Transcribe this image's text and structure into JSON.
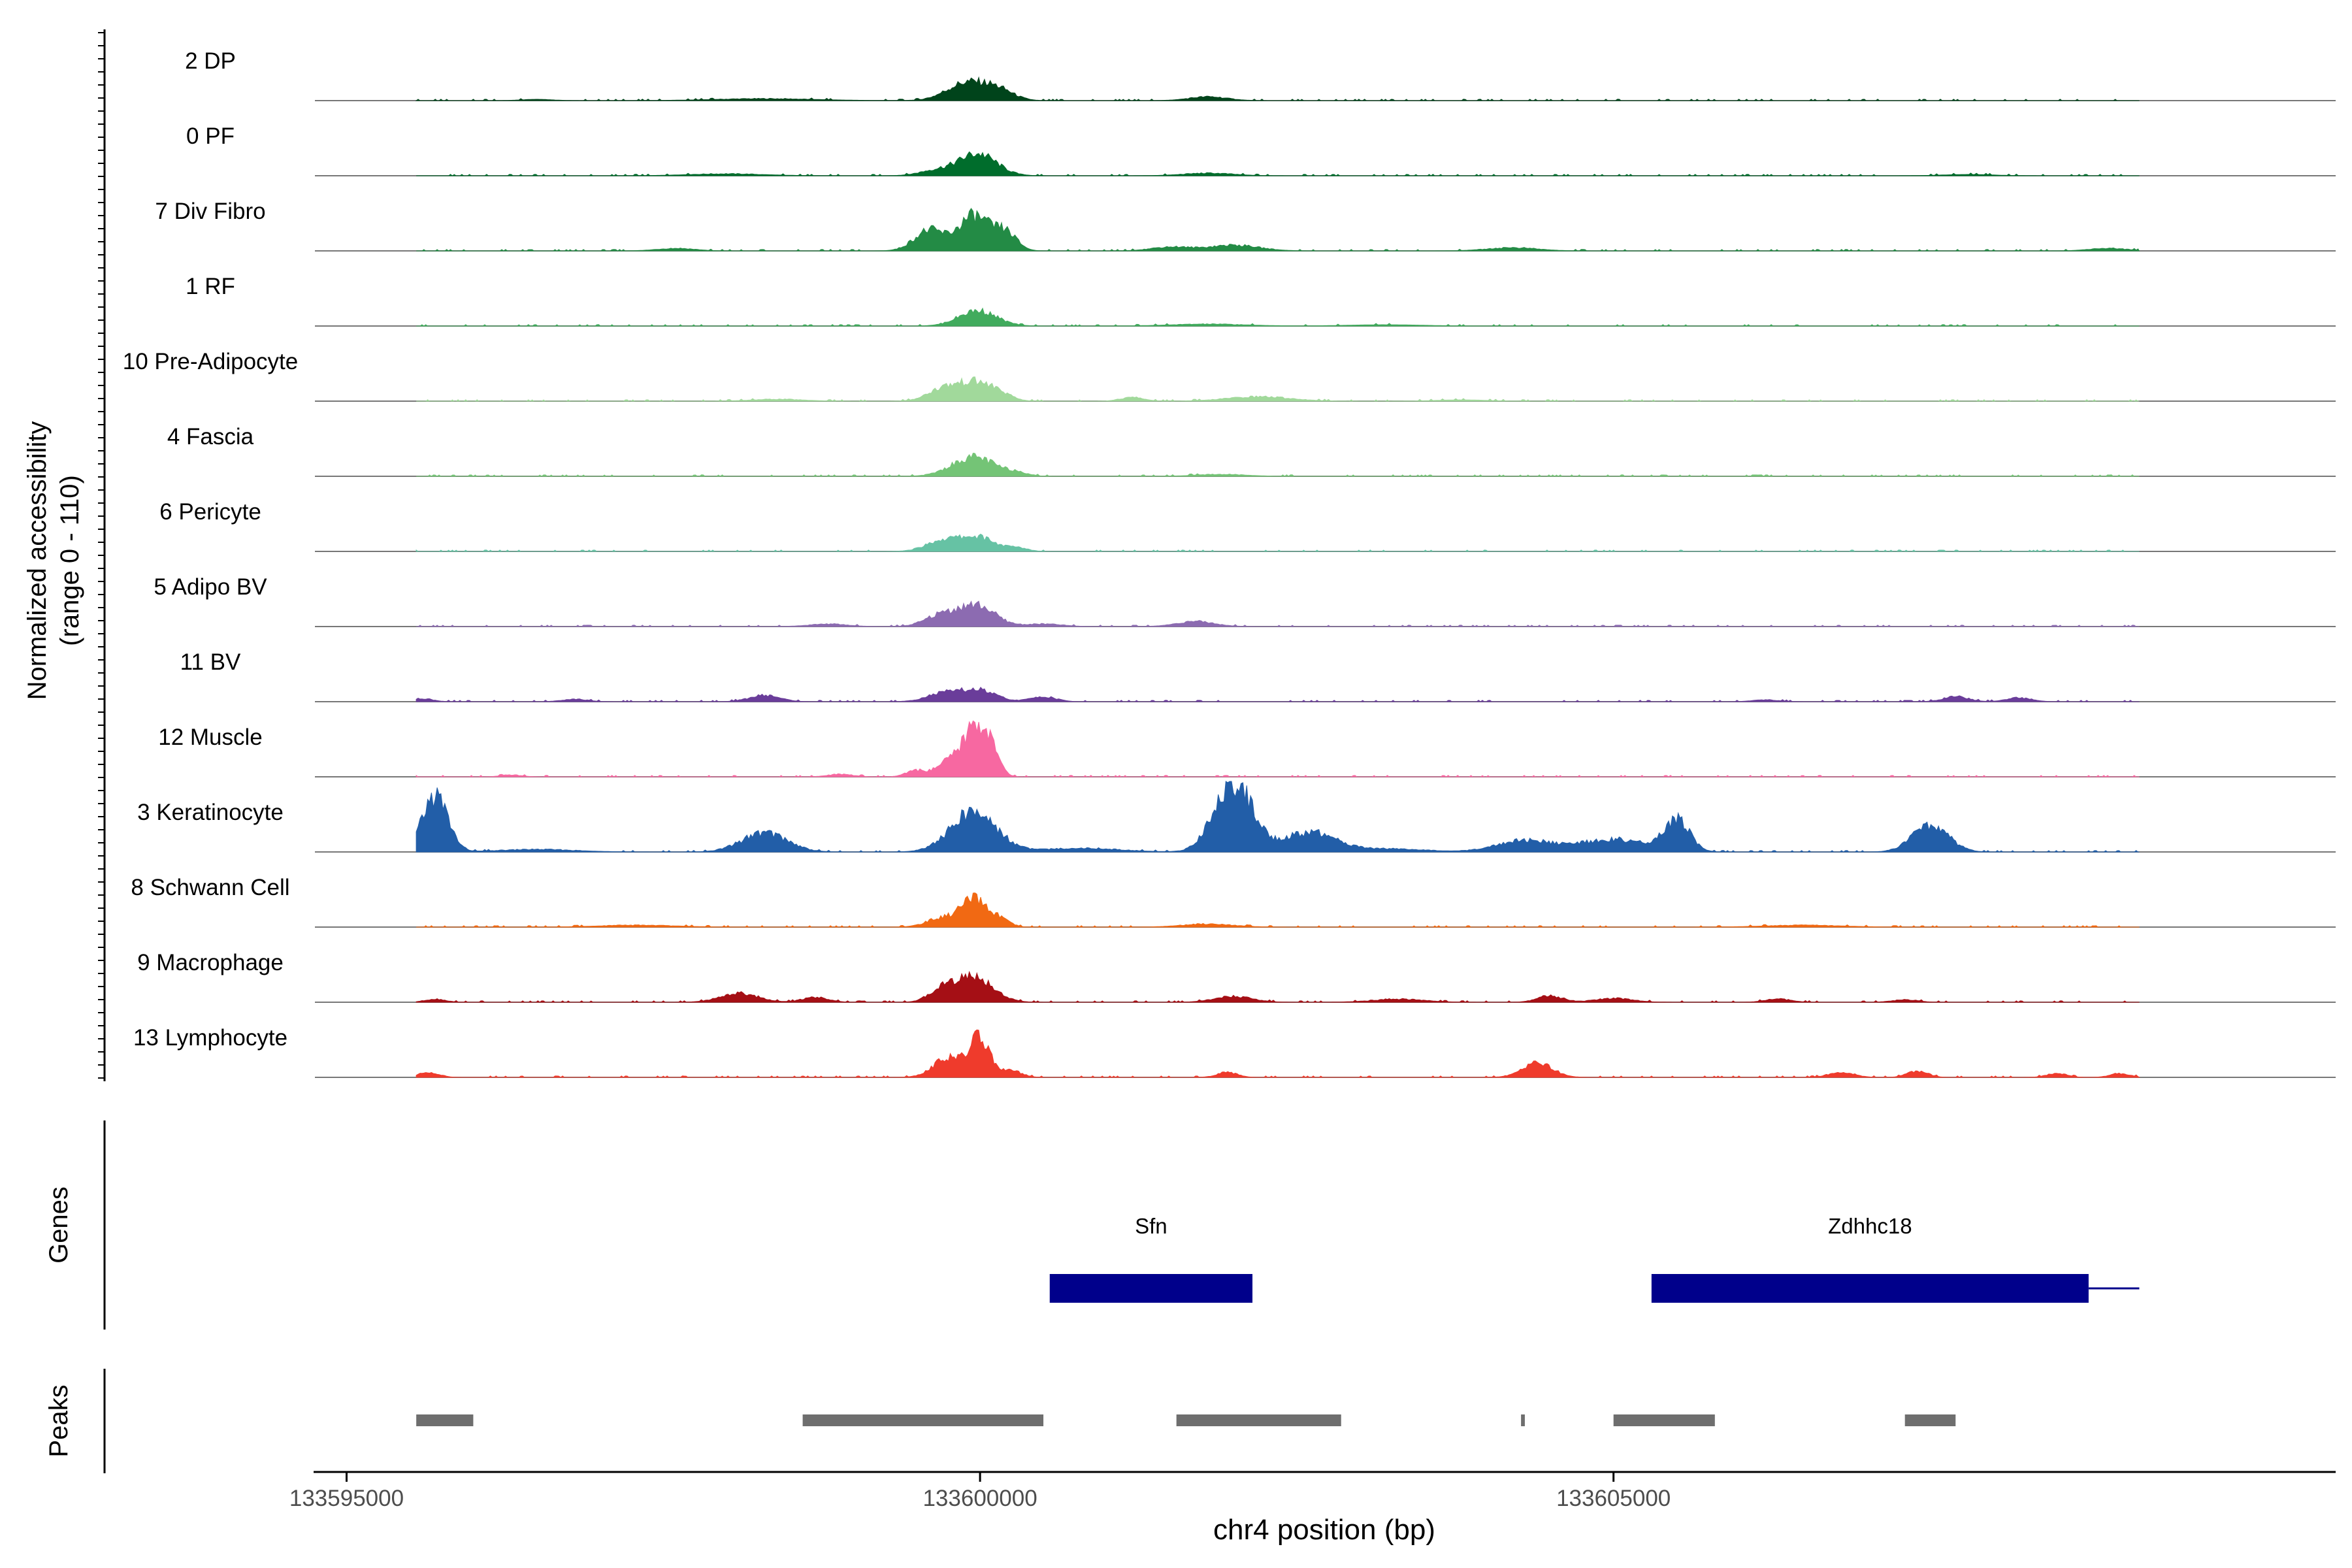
{
  "chart_data": {
    "type": "area",
    "title": "",
    "y_axis_label_line1": "Normalized accessibility",
    "y_axis_label_line2": "(range 0 - 110)",
    "y_range": [
      0,
      110
    ],
    "x_axis_label": "chr4 position (bp)",
    "x_range": [
      133594750,
      133610700
    ],
    "x_ticks": [
      {
        "value": 133595000,
        "label": "133595000"
      },
      {
        "value": 133600000,
        "label": "133600000"
      },
      {
        "value": 133605000,
        "label": "133605000"
      }
    ],
    "track_start": 133595550,
    "track_end": 133609150,
    "tracks": [
      {
        "name": "2 DP",
        "color": "#00441b",
        "bumps": [
          [
            133599900,
            160,
            28
          ],
          [
            133600150,
            120,
            14
          ],
          [
            133601800,
            150,
            6
          ],
          [
            133598300,
            400,
            3
          ],
          [
            133596500,
            120,
            2
          ]
        ]
      },
      {
        "name": "0 PF",
        "color": "#006d2c",
        "bumps": [
          [
            133599980,
            150,
            34
          ],
          [
            133599650,
            130,
            8
          ],
          [
            133601800,
            200,
            4
          ],
          [
            133598000,
            300,
            3
          ],
          [
            133607800,
            200,
            2
          ]
        ]
      },
      {
        "name": "7 Div Fibro",
        "color": "#238b45",
        "bumps": [
          [
            133599600,
            120,
            32
          ],
          [
            133599950,
            120,
            54
          ],
          [
            133600200,
            90,
            28
          ],
          [
            133602000,
            200,
            9
          ],
          [
            133601500,
            150,
            6
          ],
          [
            133604200,
            200,
            5
          ],
          [
            133597600,
            150,
            4
          ],
          [
            133608900,
            150,
            4
          ]
        ]
      },
      {
        "name": "1 RF",
        "color": "#41ab5d",
        "bumps": [
          [
            133599980,
            150,
            24
          ],
          [
            133601800,
            300,
            3
          ],
          [
            133603200,
            300,
            2
          ]
        ]
      },
      {
        "name": "10 Pre-Adipocyte",
        "color": "#a1d99b",
        "bumps": [
          [
            133599700,
            120,
            18
          ],
          [
            133599950,
            130,
            28
          ],
          [
            133600150,
            100,
            10
          ],
          [
            133601200,
            90,
            6
          ],
          [
            133602200,
            250,
            7
          ],
          [
            133598400,
            200,
            3
          ],
          [
            133603800,
            200,
            2
          ]
        ]
      },
      {
        "name": "4 Fascia",
        "color": "#74c476",
        "bumps": [
          [
            133599950,
            170,
            30
          ],
          [
            133600300,
            80,
            5
          ],
          [
            133601900,
            200,
            3
          ]
        ]
      },
      {
        "name": "6 Pericyte",
        "color": "#66c2a4",
        "bumps": [
          [
            133599700,
            130,
            16
          ],
          [
            133599980,
            140,
            22
          ],
          [
            133600300,
            80,
            5
          ]
        ]
      },
      {
        "name": "5 Adipo BV",
        "color": "#8c6bb1",
        "bumps": [
          [
            133599700,
            130,
            18
          ],
          [
            133599980,
            140,
            32
          ],
          [
            133601700,
            150,
            8
          ],
          [
            133598800,
            150,
            4
          ],
          [
            133600500,
            150,
            4
          ]
        ]
      },
      {
        "name": "11 BV",
        "color": "#6a3d9a",
        "bumps": [
          [
            133599700,
            130,
            12
          ],
          [
            133599980,
            140,
            18
          ],
          [
            133598300,
            120,
            10
          ],
          [
            133600500,
            100,
            8
          ],
          [
            133595600,
            80,
            5
          ],
          [
            133607700,
            100,
            8
          ],
          [
            133608200,
            100,
            6
          ],
          [
            133596800,
            100,
            4
          ],
          [
            133606200,
            100,
            3
          ]
        ]
      },
      {
        "name": "12 Muscle",
        "color": "#f768a1",
        "bumps": [
          [
            133599950,
            90,
            72
          ],
          [
            133600080,
            70,
            38
          ],
          [
            133599750,
            90,
            22
          ],
          [
            133599500,
            80,
            10
          ],
          [
            133598900,
            100,
            4
          ],
          [
            133596300,
            80,
            3
          ]
        ]
      },
      {
        "name": "3 Keratinocyte",
        "color": "#225ea8",
        "bumps": [
          [
            133595700,
            100,
            88
          ],
          [
            133602000,
            150,
            110
          ],
          [
            133598300,
            180,
            30
          ],
          [
            133599950,
            180,
            62
          ],
          [
            133602600,
            200,
            30
          ],
          [
            133604300,
            220,
            18
          ],
          [
            133605000,
            250,
            20
          ],
          [
            133605500,
            100,
            48
          ],
          [
            133607500,
            140,
            42
          ],
          [
            133596500,
            300,
            4
          ],
          [
            133600800,
            300,
            6
          ],
          [
            133603200,
            300,
            5
          ]
        ]
      },
      {
        "name": "8 Schwann Cell",
        "color": "#f16913",
        "bumps": [
          [
            133599950,
            100,
            42
          ],
          [
            133599700,
            120,
            14
          ],
          [
            133600150,
            80,
            12
          ],
          [
            133601800,
            200,
            5
          ],
          [
            133597300,
            300,
            3
          ],
          [
            133606500,
            300,
            3
          ]
        ]
      },
      {
        "name": "9 Macrophage",
        "color": "#a50f15",
        "bumps": [
          [
            133599950,
            150,
            40
          ],
          [
            133599700,
            100,
            18
          ],
          [
            133598100,
            150,
            14
          ],
          [
            133598700,
            100,
            8
          ],
          [
            133602000,
            150,
            9
          ],
          [
            133604500,
            100,
            10
          ],
          [
            133605000,
            150,
            6
          ],
          [
            133603300,
            200,
            5
          ],
          [
            133606300,
            100,
            5
          ],
          [
            133607300,
            100,
            4
          ],
          [
            133595700,
            80,
            5
          ]
        ]
      },
      {
        "name": "13 Lymphocyte",
        "color": "#ef3b2c",
        "bumps": [
          [
            133600000,
            80,
            60
          ],
          [
            133599750,
            120,
            30
          ],
          [
            133600250,
            80,
            10
          ],
          [
            133595650,
            80,
            8
          ],
          [
            133604400,
            120,
            22
          ],
          [
            133601950,
            80,
            8
          ],
          [
            133607400,
            80,
            10
          ],
          [
            133606800,
            100,
            8
          ],
          [
            133608500,
            80,
            6
          ],
          [
            133609000,
            80,
            6
          ]
        ]
      }
    ],
    "genes_panel_label": "Genes",
    "genes": [
      {
        "name": "Sfn",
        "start": 133600550,
        "end": 133602150,
        "extend_to": null
      },
      {
        "name": "Zdhhc18",
        "start": 133605300,
        "end": 133608750,
        "extend_to": 133609150
      }
    ],
    "peaks_panel_label": "Peaks",
    "peaks": [
      [
        133595550,
        133596000
      ],
      [
        133598600,
        133600500
      ],
      [
        133601550,
        133602850
      ],
      [
        133604270,
        133604300
      ],
      [
        133605000,
        133605800
      ],
      [
        133607300,
        133607700
      ]
    ],
    "colors": {
      "gene": "#00008b",
      "peak": "#6e6e6e",
      "baseline": "#777777",
      "axis": "#000000",
      "tick_text": "#4d4d4d"
    }
  }
}
